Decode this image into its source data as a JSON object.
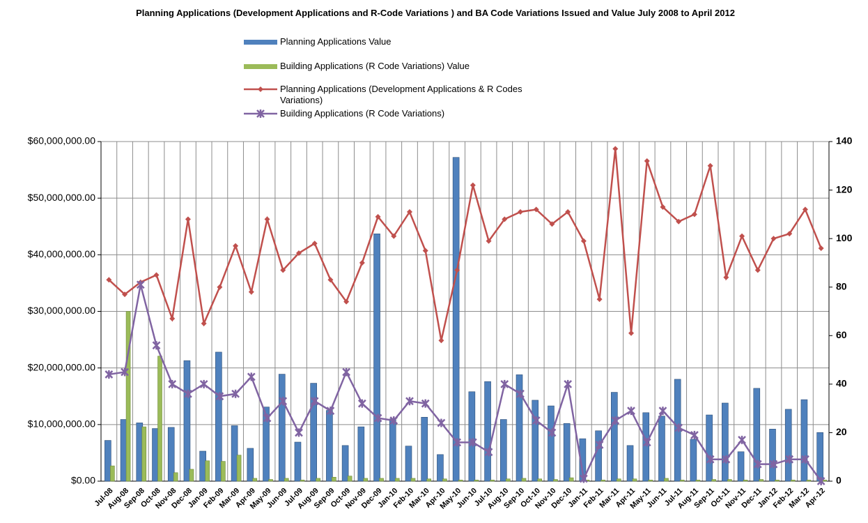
{
  "chart_data": {
    "type": "bar-line",
    "title": "Planning Applications (Development Applications and R-Code Variations ) and BA Code Variations Issued and Value July 2008 to April 2012",
    "categories": [
      "Jul-08",
      "Aug-08",
      "Sep-08",
      "Oct-08",
      "Nov-08",
      "Dec-08",
      "Jan-09",
      "Feb-09",
      "Mar-09",
      "Apr-09",
      "May-09",
      "Jun-09",
      "Jul-09",
      "Aug-09",
      "Sep-09",
      "Oct-09",
      "Nov-09",
      "Dec-09",
      "Jan-10",
      "Feb-10",
      "Mar-10",
      "Apr-10",
      "May-10",
      "Jun-10",
      "Jul-10",
      "Aug-10",
      "Sep-10",
      "Oct-10",
      "Nov-10",
      "Dec-10",
      "Jan-11",
      "Feb-11",
      "Mar-11",
      "Apr-11",
      "May-11",
      "Jun-11",
      "Jul-11",
      "Aug-11",
      "Sep-11",
      "Oct-11",
      "Nov-11",
      "Dec-11",
      "Jan-12",
      "Feb-12",
      "Mar-12",
      "Apr-12"
    ],
    "series": [
      {
        "name": "Planning Applications Value",
        "kind": "bar",
        "color": "#4f81bd",
        "values": [
          7200000,
          10900000,
          10300000,
          9300000,
          9500000,
          21300000,
          5300000,
          22800000,
          9800000,
          5800000,
          13100000,
          18900000,
          6900000,
          17300000,
          12500000,
          6300000,
          9600000,
          43700000,
          11000000,
          6200000,
          11300000,
          4700000,
          57200000,
          15800000,
          17600000,
          10900000,
          18800000,
          14300000,
          13300000,
          10200000,
          7500000,
          8900000,
          15700000,
          6300000,
          12100000,
          11500000,
          18000000,
          7400000,
          11700000,
          13800000,
          5200000,
          16400000,
          9200000,
          12700000,
          14400000,
          8600000
        ]
      },
      {
        "name": "Building Applications  (R Code Variations) Value",
        "kind": "bar",
        "color": "#9bbb59",
        "values": [
          2700000,
          30000000,
          9600000,
          22100000,
          1500000,
          2100000,
          3600000,
          3500000,
          4600000,
          500000,
          300000,
          500000,
          200000,
          500000,
          700000,
          900000,
          500000,
          500000,
          500000,
          500000,
          400000,
          400000,
          200000,
          200000,
          200000,
          400000,
          500000,
          400000,
          300000,
          600000,
          200000,
          200000,
          400000,
          400000,
          200000,
          500000,
          200000,
          200000,
          300000,
          300000,
          200000,
          300000,
          200000,
          200000,
          200000,
          200000
        ]
      },
      {
        "name": "Planning Applications (Development Applications & R Codes Variations)",
        "kind": "line",
        "marker": "diamond",
        "axis": "y2",
        "color": "#c0504d",
        "values": [
          83,
          77,
          82,
          85,
          67,
          108,
          65,
          80,
          97,
          78,
          108,
          87,
          94,
          98,
          83,
          74,
          90,
          109,
          101,
          111,
          95,
          58,
          87,
          122,
          99,
          108,
          111,
          112,
          106,
          111,
          99,
          75,
          137,
          61,
          132,
          113,
          107,
          110,
          130,
          84,
          101,
          87,
          100,
          102,
          112,
          96
        ]
      },
      {
        "name": "Building Applications  (R Code Variations)",
        "kind": "line",
        "marker": "x",
        "axis": "y2",
        "color": "#8064a2",
        "values": [
          44,
          45,
          81,
          56,
          40,
          36,
          40,
          35,
          36,
          43,
          26,
          33,
          20,
          33,
          29,
          45,
          32,
          26,
          25,
          33,
          32,
          24,
          16,
          16,
          12,
          40,
          36,
          25,
          20,
          40,
          1,
          15,
          25,
          29,
          16,
          29,
          22,
          19,
          9,
          9,
          17,
          7,
          7,
          9,
          9,
          0
        ]
      }
    ],
    "ylim": [
      0,
      60000000
    ],
    "yticks": [
      {
        "value": 0,
        "label": "$0.00"
      },
      {
        "value": 10000000,
        "label": "$10,000,000.00"
      },
      {
        "value": 20000000,
        "label": "$20,000,000.00"
      },
      {
        "value": 30000000,
        "label": "$30,000,000.00"
      },
      {
        "value": 40000000,
        "label": "$40,000,000.00"
      },
      {
        "value": 50000000,
        "label": "$50,000,000.00"
      },
      {
        "value": 60000000,
        "label": "$60,000,000.00"
      }
    ],
    "y2lim": [
      0,
      140
    ],
    "y2ticks": [
      0,
      20,
      40,
      60,
      80,
      100,
      120,
      140
    ],
    "grid": true
  }
}
